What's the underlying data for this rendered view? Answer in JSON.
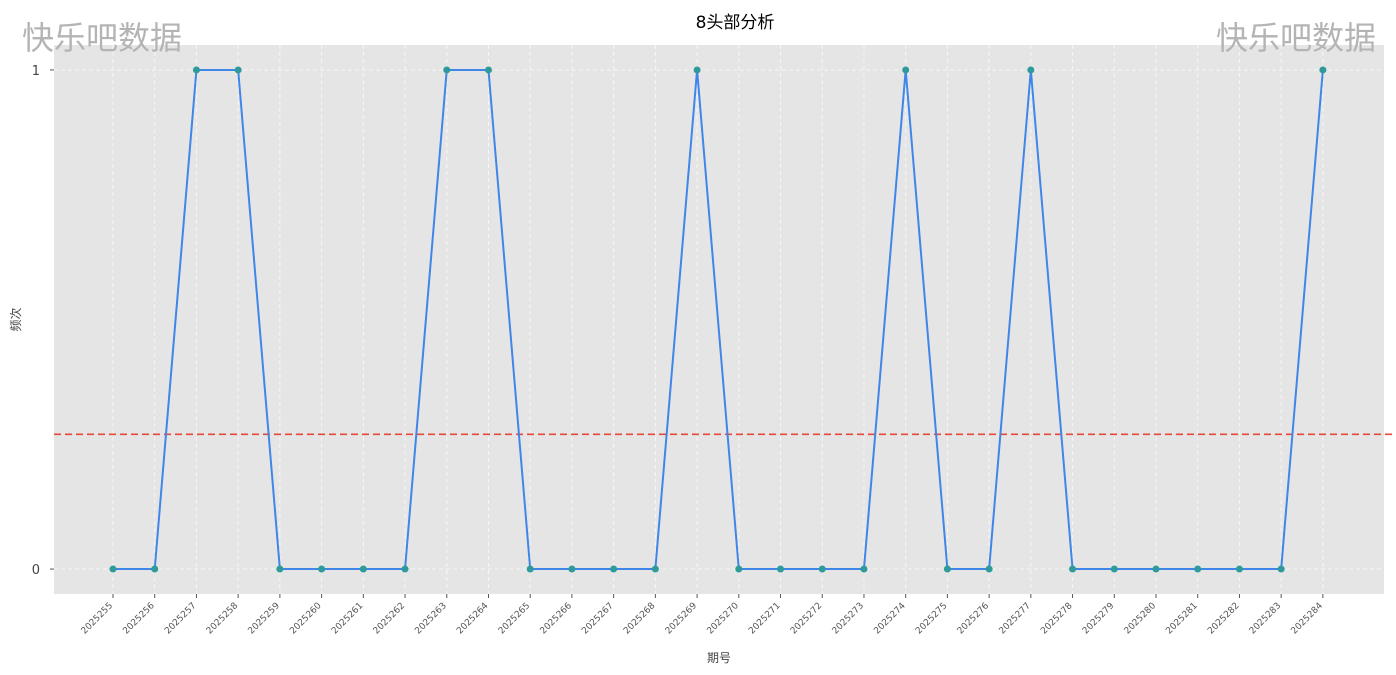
{
  "watermark": "快乐吧数据",
  "chart_data": {
    "type": "line",
    "title": "8头部分析",
    "xlabel": "期号",
    "ylabel": "频次",
    "categories": [
      "2025255",
      "2025256",
      "2025257",
      "2025258",
      "2025259",
      "2025260",
      "2025261",
      "2025262",
      "2025263",
      "2025264",
      "2025265",
      "2025266",
      "2025267",
      "2025268",
      "2025269",
      "2025270",
      "2025271",
      "2025272",
      "2025273",
      "2025274",
      "2025275",
      "2025276",
      "2025277",
      "2025278",
      "2025279",
      "2025280",
      "2025281",
      "2025282",
      "2025283",
      "2025284"
    ],
    "values": [
      0,
      0,
      1,
      1,
      0,
      0,
      0,
      0,
      1,
      1,
      0,
      0,
      0,
      0,
      1,
      0,
      0,
      0,
      0,
      1,
      0,
      0,
      1,
      0,
      0,
      0,
      0,
      0,
      0,
      1
    ],
    "yticks": [
      0,
      1
    ],
    "ylim": [
      -0.05,
      1.05
    ],
    "reference_line": 0.27,
    "grid": true,
    "colors": {
      "line": "#3f86e8",
      "marker": "#2f9a9a",
      "reference": "#e8483a",
      "plot_bg": "#e5e5e5",
      "grid": "#f6f6f6"
    }
  }
}
